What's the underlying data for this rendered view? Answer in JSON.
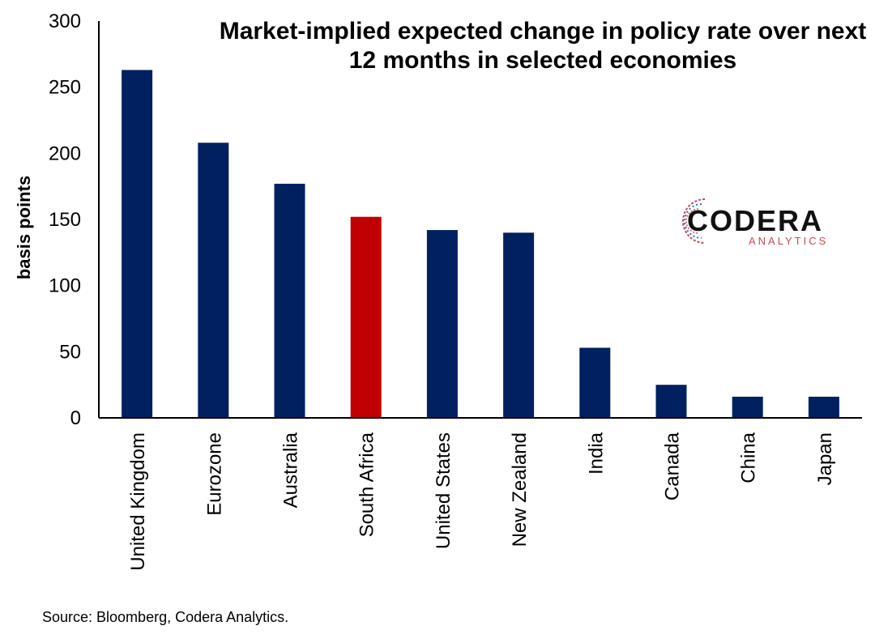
{
  "chart_data": {
    "type": "bar",
    "title": [
      "Market-implied expected change in policy rate over next",
      "12 months in selected economies"
    ],
    "ylabel": "basis points",
    "xlabel": "",
    "ylim": [
      0,
      300
    ],
    "yticks": [
      0,
      50,
      100,
      150,
      200,
      250,
      300
    ],
    "categories": [
      "United Kingdom",
      "Eurozone",
      "Australia",
      "South Africa",
      "United States",
      "New Zealand",
      "India",
      "Canada",
      "China",
      "Japan"
    ],
    "values": [
      263,
      208,
      177,
      152,
      142,
      140,
      53,
      25,
      16,
      16
    ],
    "bar_colors": [
      "#002060",
      "#002060",
      "#002060",
      "#c00000",
      "#002060",
      "#002060",
      "#002060",
      "#002060",
      "#002060",
      "#002060"
    ],
    "grid": false
  },
  "source": "Source: Bloomberg, Codera Analytics.",
  "logo": {
    "word": "CODERA",
    "sub": "ANALYTICS",
    "accent_color": "#c84a55",
    "secondary_color": "#2a6fb0"
  }
}
